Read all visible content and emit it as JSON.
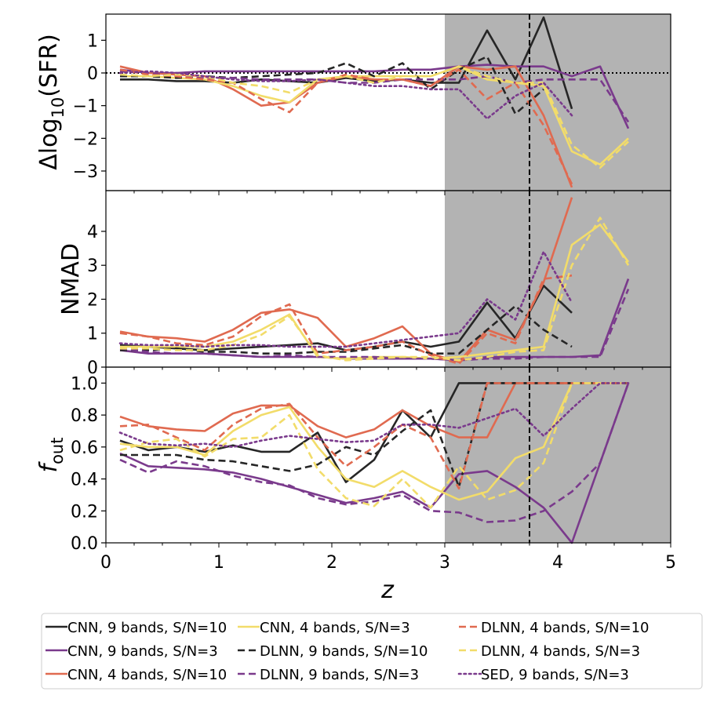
{
  "chart_data": {
    "type": "line",
    "xlabel": "z",
    "xlim": [
      0,
      5
    ],
    "x_ticks": [
      "0",
      "1",
      "2",
      "3",
      "4",
      "5"
    ],
    "shaded_region": [
      3,
      5
    ],
    "vline_x": 3.75,
    "x": [
      0.125,
      0.375,
      0.625,
      0.875,
      1.125,
      1.375,
      1.625,
      1.875,
      2.125,
      2.375,
      2.625,
      2.875,
      3.125,
      3.375,
      3.625,
      3.875,
      4.125,
      4.375,
      4.625
    ],
    "colors": {
      "black": "#262626",
      "purple": "#7a3a8c",
      "coral": "#e06a50",
      "yellow": "#f2dc6a"
    },
    "series_defs": [
      {
        "key": "cnn9_10",
        "name": "CNN, 9 bands, S/N=10",
        "color": "#262626",
        "dash": "solid"
      },
      {
        "key": "cnn9_3",
        "name": "CNN, 9 bands, S/N=3",
        "color": "#7a3a8c",
        "dash": "solid"
      },
      {
        "key": "cnn4_10",
        "name": "CNN, 4 bands, S/N=10",
        "color": "#e06a50",
        "dash": "solid"
      },
      {
        "key": "cnn4_3",
        "name": "CNN, 4 bands, S/N=3",
        "color": "#f2dc6a",
        "dash": "solid"
      },
      {
        "key": "dlnn9_10",
        "name": "DLNN, 9 bands, S/N=10",
        "color": "#262626",
        "dash": "dashed"
      },
      {
        "key": "dlnn9_3",
        "name": "DLNN, 9 bands, S/N=3",
        "color": "#7a3a8c",
        "dash": "dashed"
      },
      {
        "key": "dlnn4_10",
        "name": "DLNN, 4 bands, S/N=10",
        "color": "#e06a50",
        "dash": "dashed"
      },
      {
        "key": "dlnn4_3",
        "name": "DLNN, 4 bands, S/N=3",
        "color": "#f2dc6a",
        "dash": "dashed"
      },
      {
        "key": "sed9_3",
        "name": "SED, 9 bands, S/N=3",
        "color": "#7a3a8c",
        "dash": "dotted"
      }
    ],
    "panels": [
      {
        "name": "delta-sfr",
        "ylabel": "Δlog10(SFR)",
        "ylim": [
          -3.6,
          1.8
        ],
        "y_ticks": [
          1,
          0,
          -1,
          -2,
          -3
        ],
        "y_tick_labels": [
          "1",
          "0",
          "−1",
          "−2",
          "−3"
        ],
        "hline": 0,
        "series": {
          "cnn9_10": [
            -0.2,
            -0.2,
            -0.25,
            -0.25,
            -0.3,
            -0.2,
            -0.25,
            -0.3,
            -0.15,
            -0.25,
            -0.2,
            -0.3,
            -0.3,
            1.3,
            -0.2,
            1.7,
            -1.1,
            null,
            null
          ],
          "cnn9_3": [
            0.1,
            0.0,
            0.0,
            0.05,
            0.05,
            0.05,
            0.05,
            0.05,
            0.05,
            0.05,
            0.1,
            0.1,
            0.2,
            0.25,
            0.2,
            0.2,
            -0.1,
            0.2,
            -1.7
          ],
          "cnn4_10": [
            0.2,
            0.0,
            -0.05,
            -0.1,
            -0.5,
            -1.0,
            -0.9,
            -0.3,
            -0.1,
            -0.2,
            -0.2,
            -0.4,
            0.2,
            0.1,
            0.2,
            -1.3,
            -3.5,
            null,
            null
          ],
          "cnn4_3": [
            -0.1,
            -0.1,
            -0.15,
            -0.2,
            -0.4,
            -0.7,
            -0.9,
            -0.2,
            -0.1,
            -0.1,
            -0.1,
            -0.1,
            0.2,
            -0.2,
            -0.3,
            -0.4,
            -2.4,
            -2.8,
            -2.0
          ],
          "dlnn9_10": [
            -0.1,
            -0.1,
            -0.15,
            -0.1,
            -0.15,
            -0.1,
            -0.05,
            0.0,
            0.3,
            -0.1,
            0.3,
            -0.5,
            0.1,
            0.5,
            -1.25,
            -0.5,
            null,
            null,
            null
          ],
          "dlnn9_3": [
            0.05,
            0.0,
            -0.1,
            -0.15,
            -0.15,
            -0.2,
            -0.2,
            -0.2,
            -0.3,
            -0.3,
            -0.2,
            -0.2,
            -0.2,
            -0.1,
            -0.3,
            -0.2,
            -0.2,
            -0.2,
            -1.5
          ],
          "dlnn4_10": [
            0.1,
            -0.05,
            -0.1,
            -0.2,
            -0.3,
            -0.8,
            -1.2,
            -0.3,
            -0.05,
            -0.2,
            -0.2,
            -0.4,
            0.1,
            -0.8,
            -0.3,
            -1.6,
            -3.4,
            null,
            null
          ],
          "dlnn4_3": [
            -0.05,
            -0.1,
            -0.05,
            -0.1,
            -0.3,
            -0.4,
            -0.6,
            -0.2,
            -0.1,
            -0.3,
            -0.1,
            -0.1,
            0.2,
            -0.1,
            -0.3,
            -0.3,
            -2.2,
            -2.9,
            -2.1
          ],
          "sed9_3": [
            0.0,
            0.05,
            0.0,
            -0.1,
            -0.2,
            -0.25,
            -0.25,
            -0.2,
            -0.3,
            -0.4,
            -0.4,
            -0.5,
            -0.5,
            -1.4,
            -0.7,
            -0.3,
            -1.3,
            null,
            null
          ]
        }
      },
      {
        "name": "nmad",
        "ylabel": "NMAD",
        "ylim": [
          0,
          5.2
        ],
        "y_ticks": [
          4,
          3,
          2,
          1,
          0
        ],
        "y_tick_labels": [
          "4",
          "3",
          "2",
          "1",
          "0"
        ],
        "series": {
          "cnn9_10": [
            0.65,
            0.6,
            0.55,
            0.5,
            0.55,
            0.6,
            0.65,
            0.7,
            0.5,
            0.6,
            0.75,
            0.6,
            0.75,
            1.9,
            0.85,
            2.4,
            1.6,
            null,
            null
          ],
          "cnn9_3": [
            0.5,
            0.4,
            0.4,
            0.4,
            0.35,
            0.3,
            0.3,
            0.3,
            0.25,
            0.25,
            0.25,
            0.25,
            0.2,
            0.3,
            0.3,
            0.3,
            0.3,
            0.35,
            2.6
          ],
          "cnn4_10": [
            1.05,
            0.9,
            0.85,
            0.75,
            1.1,
            1.6,
            1.7,
            1.45,
            0.6,
            0.85,
            1.2,
            0.4,
            0.15,
            1.1,
            0.8,
            2.5,
            5.0,
            null,
            null
          ],
          "cnn4_3": [
            0.6,
            0.6,
            0.6,
            0.6,
            0.75,
            1.1,
            1.55,
            0.3,
            0.25,
            0.3,
            0.3,
            0.25,
            0.3,
            0.4,
            0.5,
            0.6,
            3.6,
            4.2,
            3.1
          ],
          "dlnn9_10": [
            0.5,
            0.5,
            0.55,
            0.45,
            0.45,
            0.4,
            0.4,
            0.45,
            0.45,
            0.55,
            0.65,
            0.4,
            0.4,
            1.1,
            1.8,
            1.1,
            0.6,
            null,
            null
          ],
          "dlnn9_3": [
            0.55,
            0.45,
            0.4,
            0.4,
            0.35,
            0.3,
            0.35,
            0.3,
            0.3,
            0.3,
            0.25,
            0.25,
            0.2,
            0.25,
            0.25,
            0.3,
            0.3,
            0.3,
            2.3
          ],
          "dlnn4_10": [
            1.0,
            0.9,
            0.7,
            0.65,
            0.9,
            1.5,
            1.85,
            0.4,
            0.5,
            0.6,
            0.75,
            0.35,
            0.1,
            1.0,
            0.7,
            2.6,
            2.7,
            null,
            null
          ],
          "dlnn4_3": [
            0.55,
            0.55,
            0.5,
            0.5,
            0.65,
            0.95,
            1.5,
            0.35,
            0.2,
            0.25,
            0.3,
            0.3,
            0.2,
            0.3,
            0.45,
            0.5,
            3.0,
            4.4,
            3.0
          ],
          "sed9_3": [
            0.7,
            0.65,
            0.65,
            0.6,
            0.65,
            0.65,
            0.6,
            0.6,
            0.6,
            0.7,
            0.8,
            0.9,
            1.0,
            2.0,
            1.4,
            3.4,
            1.9,
            null,
            null
          ]
        }
      },
      {
        "name": "f-out",
        "ylabel": "fout",
        "ylim": [
          0,
          1.1
        ],
        "y_ticks": [
          1.0,
          0.8,
          0.6,
          0.4,
          0.2,
          0.0
        ],
        "y_tick_labels": [
          "1.0",
          "0.8",
          "0.6",
          "0.4",
          "0.2",
          "0.0"
        ],
        "series": {
          "cnn9_10": [
            0.64,
            0.58,
            0.6,
            0.57,
            0.61,
            0.57,
            0.57,
            0.69,
            0.38,
            0.52,
            0.83,
            0.66,
            1.0,
            1.0,
            1.0,
            1.0,
            1.0,
            1.0,
            1.0
          ],
          "cnn9_3": [
            0.56,
            0.48,
            0.47,
            0.46,
            0.44,
            0.4,
            0.35,
            0.3,
            0.25,
            0.28,
            0.32,
            0.22,
            0.43,
            0.45,
            0.35,
            0.22,
            0.0,
            0.5,
            1.0
          ],
          "cnn4_10": [
            0.79,
            0.73,
            0.71,
            0.7,
            0.81,
            0.86,
            0.86,
            0.73,
            0.66,
            0.71,
            0.83,
            0.73,
            0.66,
            0.66,
            1.0,
            1.0,
            1.0,
            1.0,
            1.0
          ],
          "cnn4_3": [
            0.62,
            0.6,
            0.6,
            0.55,
            0.7,
            0.8,
            0.85,
            0.6,
            0.4,
            0.35,
            0.45,
            0.35,
            0.27,
            0.32,
            0.53,
            0.6,
            1.0,
            1.0,
            1.0
          ],
          "dlnn9_10": [
            0.55,
            0.55,
            0.55,
            0.52,
            0.51,
            0.48,
            0.45,
            0.49,
            0.6,
            0.55,
            0.7,
            0.83,
            0.35,
            1.0,
            1.0,
            1.0,
            1.0,
            1.0,
            1.0
          ],
          "dlnn9_3": [
            0.52,
            0.44,
            0.51,
            0.48,
            0.42,
            0.38,
            0.36,
            0.28,
            0.24,
            0.26,
            0.3,
            0.2,
            0.19,
            0.13,
            0.14,
            0.2,
            0.32,
            0.5,
            1.0
          ],
          "dlnn4_10": [
            0.73,
            0.74,
            0.66,
            0.58,
            0.74,
            0.84,
            0.87,
            0.66,
            0.48,
            0.6,
            0.74,
            0.66,
            0.34,
            1.0,
            1.0,
            1.0,
            1.0,
            1.0,
            1.0
          ],
          "dlnn4_3": [
            0.58,
            0.63,
            0.65,
            0.54,
            0.65,
            0.66,
            0.8,
            0.46,
            0.28,
            0.23,
            0.4,
            0.22,
            0.48,
            0.27,
            0.33,
            0.5,
            1.0,
            1.0,
            1.0
          ],
          "sed9_3": [
            0.69,
            0.62,
            0.61,
            0.62,
            0.6,
            0.64,
            0.67,
            0.65,
            0.63,
            0.64,
            0.74,
            0.74,
            0.72,
            0.78,
            0.84,
            0.67,
            0.84,
            1.0,
            1.0
          ]
        }
      }
    ]
  }
}
